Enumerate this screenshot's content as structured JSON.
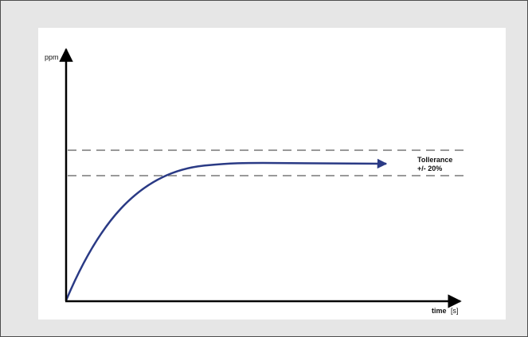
{
  "diagram": {
    "y_axis_label": "ppm",
    "x_axis_label": "time",
    "x_axis_unit": "[s]",
    "tolerance_label_line1": "Tollerance",
    "tolerance_label_line2": "+/- 20%"
  },
  "colors": {
    "frame_background": "#e6e6e6",
    "frame_border": "#4d4d4d",
    "panel_background": "#ffffff",
    "axis": "#000000",
    "curve": "#2a3a85",
    "tolerance_lines": "#999999"
  }
}
